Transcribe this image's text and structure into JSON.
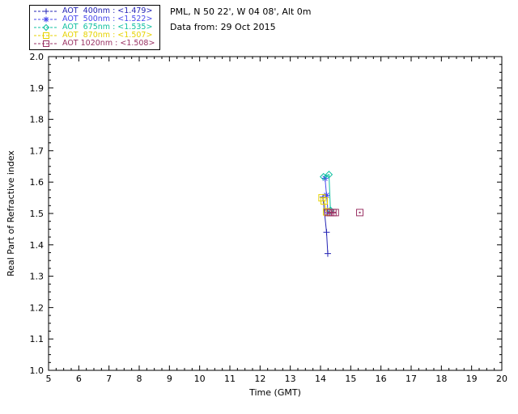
{
  "header": {
    "line1": "PML, N 50 22', W 04 08', Alt 0m",
    "line2": "Data from: 29 Oct 2015"
  },
  "chart_data": {
    "type": "line",
    "title": "",
    "xlabel": "Time (GMT)",
    "ylabel": "Real Part of Refractive index",
    "xlim": [
      5,
      20
    ],
    "ylim": [
      1.0,
      2.0
    ],
    "xtick_step": 1,
    "ytick_step": 0.1,
    "xtick_labels": [
      "5",
      "6",
      "7",
      "8",
      "9",
      "10",
      "11",
      "12",
      "13",
      "14",
      "15",
      "16",
      "17",
      "18",
      "19",
      "20"
    ],
    "ytick_labels": [
      "1.0",
      "1.1",
      "1.2",
      "1.3",
      "1.4",
      "1.5",
      "1.6",
      "1.7",
      "1.8",
      "1.9",
      "2.0"
    ],
    "grid": false,
    "legend_position": "top-left",
    "axis_color": "#000000",
    "background": "#ffffff",
    "series": [
      {
        "name": "AOT  400nm",
        "legend_value": "<1.479>",
        "legend_label": "AOT  400nm : <1.479>",
        "color": "#2424b4",
        "marker": "plus",
        "linestyle": "dashed",
        "segments": [
          [
            [
              14.08,
              1.552
            ],
            [
              14.2,
              1.44
            ],
            [
              14.24,
              1.372
            ]
          ]
        ]
      },
      {
        "name": "AOT  500nm",
        "legend_value": "<1.522>",
        "legend_label": "AOT  500nm : <1.522>",
        "color": "#4848ee",
        "marker": "asterisk",
        "linestyle": "dashed",
        "segments": [
          [
            [
              14.15,
              1.612
            ],
            [
              14.2,
              1.558
            ],
            [
              14.25,
              1.503
            ]
          ]
        ]
      },
      {
        "name": "AOT  675nm",
        "legend_value": "<1.535>",
        "legend_label": "AOT  675nm : <1.535>",
        "color": "#10c0a0",
        "marker": "diamond",
        "linestyle": "dashed",
        "segments": [
          [
            [
              14.1,
              1.617
            ],
            [
              14.28,
              1.624
            ],
            [
              14.33,
              1.51
            ]
          ]
        ]
      },
      {
        "name": "AOT  870nm",
        "legend_value": "<1.507>",
        "legend_label": "AOT  870nm : <1.507>",
        "color": "#e6d200",
        "marker": "square",
        "linestyle": "dashed",
        "segments": [
          [
            [
              14.05,
              1.55
            ],
            [
              14.12,
              1.54
            ],
            [
              14.2,
              1.505
            ]
          ]
        ]
      },
      {
        "name": "AOT 1020nm",
        "legend_value": "<1.508>",
        "legend_label": "AOT 1020nm : <1.508>",
        "color": "#9a3264",
        "marker": "square-dot",
        "linestyle": "dashed",
        "segments": [
          [
            [
              14.25,
              1.503
            ],
            [
              14.33,
              1.503
            ],
            [
              14.41,
              1.503
            ],
            [
              14.49,
              1.503
            ]
          ],
          [
            [
              15.3,
              1.503
            ]
          ]
        ]
      }
    ]
  }
}
